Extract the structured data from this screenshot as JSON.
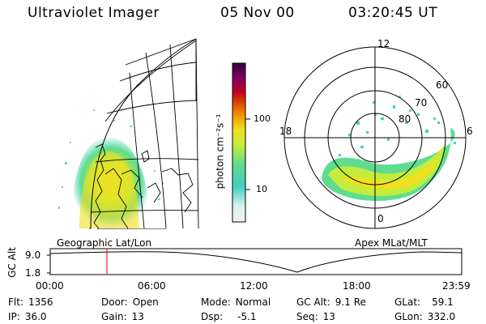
{
  "header": {
    "title": "Ultraviolet Imager",
    "date": "05 Nov 00",
    "time": "03:20:45 UT"
  },
  "colorbar": {
    "label": "photon cm⁻²s⁻¹",
    "ticks": [
      "100",
      "10"
    ],
    "colors": [
      "#f0f0f0",
      "#d7f2ee",
      "#40d0c0",
      "#5fdc90",
      "#c4ec3c",
      "#f0e020",
      "#f0a000",
      "#e05000",
      "#c00020",
      "#800060",
      "#300040"
    ]
  },
  "left_map": {
    "label": "Geographic Lat/Lon"
  },
  "right_map": {
    "label": "Apex MLat/MLT",
    "mlt_labels": {
      "top": "12",
      "bottom": "0",
      "left": "18",
      "right": "6"
    },
    "lat_labels": [
      "60",
      "70",
      "80"
    ]
  },
  "timeline": {
    "axis_label": "GC Alt",
    "y_ticks": [
      "9.0",
      "1.8"
    ],
    "x_ticks": [
      "00:00",
      "06:00",
      "12:00",
      "18:00",
      "23:59"
    ],
    "current_marker_time": "03:20:45"
  },
  "info": [
    [
      {
        "k": "Flt:",
        "v": "1356"
      },
      {
        "k": "Door:",
        "v": "Open"
      },
      {
        "k": "Mode:",
        "v": "Normal"
      },
      {
        "k": "GC Alt:",
        "v": "9.1 Re"
      },
      {
        "k": "GLat:",
        "v": "59.1"
      }
    ],
    [
      {
        "k": "IP:",
        "v": "36.0"
      },
      {
        "k": "Gain:",
        "v": "13"
      },
      {
        "k": "Dsp:",
        "v": "-5.1"
      },
      {
        "k": "Seq:",
        "v": "13"
      },
      {
        "k": "GLon:",
        "v": "332.0"
      }
    ]
  ]
}
